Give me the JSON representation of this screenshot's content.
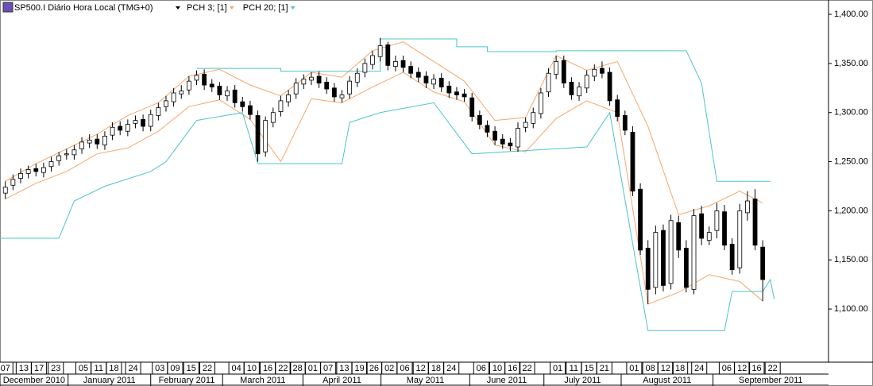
{
  "chart_data": {
    "type": "candlestick",
    "title": "SP500.I Diário Hora Local (TMG+0)",
    "up_color": "#ffffff",
    "down_color": "#000000",
    "open": [
      1218,
      1226,
      1233,
      1238,
      1243,
      1239,
      1245,
      1251,
      1257,
      1257,
      1263,
      1269,
      1273,
      1267,
      1277,
      1286,
      1281,
      1289,
      1293,
      1286,
      1297,
      1306,
      1311,
      1319,
      1323,
      1333,
      1339,
      1329,
      1327,
      1317,
      1323,
      1311,
      1307,
      1297,
      1260,
      1290,
      1301,
      1311,
      1319,
      1329,
      1333,
      1337,
      1331,
      1325,
      1315,
      1319,
      1331,
      1341,
      1349,
      1357,
      1369,
      1347,
      1353,
      1347,
      1341,
      1337,
      1329,
      1335,
      1327,
      1321,
      1319,
      1315,
      1297,
      1287,
      1281,
      1273,
      1269,
      1265,
      1285,
      1289,
      1299,
      1321,
      1339,
      1353,
      1331,
      1317,
      1325,
      1337,
      1345,
      1341,
      1313,
      1297,
      1280,
      1222,
      1162,
      1122,
      1180,
      1126,
      1188,
      1162,
      1120,
      1197,
      1170,
      1180,
      1199,
      1166,
      1142,
      1198,
      1212,
      1163
    ],
    "high": [
      1230,
      1237,
      1243,
      1246,
      1248,
      1249,
      1255,
      1260,
      1263,
      1267,
      1275,
      1278,
      1278,
      1281,
      1290,
      1291,
      1293,
      1297,
      1298,
      1303,
      1310,
      1317,
      1325,
      1328,
      1337,
      1343,
      1344,
      1334,
      1331,
      1327,
      1328,
      1316,
      1312,
      1302,
      1296,
      1305,
      1317,
      1323,
      1335,
      1339,
      1341,
      1342,
      1336,
      1330,
      1323,
      1337,
      1345,
      1355,
      1363,
      1376,
      1372,
      1358,
      1358,
      1352,
      1346,
      1342,
      1339,
      1340,
      1332,
      1326,
      1324,
      1320,
      1302,
      1292,
      1286,
      1278,
      1274,
      1290,
      1295,
      1305,
      1325,
      1345,
      1358,
      1358,
      1336,
      1331,
      1343,
      1349,
      1352,
      1346,
      1318,
      1302,
      1286,
      1228,
      1170,
      1185,
      1186,
      1196,
      1195,
      1170,
      1202,
      1205,
      1184,
      1208,
      1206,
      1172,
      1207,
      1220,
      1222,
      1170
    ],
    "low": [
      1212,
      1221,
      1228,
      1233,
      1235,
      1234,
      1240,
      1246,
      1252,
      1252,
      1258,
      1264,
      1263,
      1262,
      1272,
      1277,
      1276,
      1284,
      1281,
      1281,
      1292,
      1301,
      1306,
      1314,
      1318,
      1328,
      1323,
      1321,
      1313,
      1312,
      1305,
      1301,
      1293,
      1250,
      1255,
      1285,
      1296,
      1306,
      1314,
      1324,
      1328,
      1325,
      1319,
      1311,
      1310,
      1314,
      1326,
      1336,
      1344,
      1352,
      1343,
      1342,
      1341,
      1335,
      1331,
      1325,
      1324,
      1321,
      1315,
      1313,
      1311,
      1291,
      1283,
      1275,
      1267,
      1263,
      1261,
      1260,
      1280,
      1284,
      1294,
      1316,
      1334,
      1325,
      1313,
      1312,
      1320,
      1332,
      1335,
      1307,
      1291,
      1277,
      1215,
      1155,
      1105,
      1115,
      1118,
      1120,
      1152,
      1117,
      1115,
      1165,
      1165,
      1172,
      1160,
      1135,
      1136,
      1190,
      1160,
      1108
    ],
    "close": [
      1224,
      1232,
      1238,
      1242,
      1240,
      1244,
      1250,
      1256,
      1258,
      1262,
      1270,
      1272,
      1268,
      1276,
      1285,
      1282,
      1288,
      1292,
      1286,
      1298,
      1305,
      1312,
      1320,
      1322,
      1332,
      1338,
      1328,
      1326,
      1318,
      1322,
      1310,
      1306,
      1298,
      1258,
      1292,
      1300,
      1312,
      1318,
      1330,
      1334,
      1336,
      1330,
      1324,
      1316,
      1318,
      1332,
      1340,
      1350,
      1358,
      1368,
      1348,
      1352,
      1346,
      1340,
      1336,
      1330,
      1334,
      1326,
      1320,
      1318,
      1316,
      1296,
      1288,
      1280,
      1272,
      1268,
      1266,
      1284,
      1290,
      1300,
      1320,
      1340,
      1352,
      1330,
      1318,
      1326,
      1338,
      1344,
      1340,
      1312,
      1296,
      1282,
      1220,
      1160,
      1120,
      1178,
      1124,
      1190,
      1160,
      1122,
      1195,
      1172,
      1178,
      1200,
      1165,
      1140,
      1200,
      1210,
      1165,
      1130
    ],
    "indicators": [
      {
        "name": "PCH 3; [1]",
        "color": "#f7a66b",
        "upper": {
          "x": [
            0,
            4,
            8,
            12,
            16,
            20,
            24,
            28,
            32,
            36,
            40,
            44,
            48,
            52,
            56,
            60,
            64,
            68,
            72,
            76,
            80,
            84,
            88,
            92,
            96,
            99
          ],
          "y": [
            1230,
            1248,
            1263,
            1278,
            1297,
            1310,
            1337,
            1344,
            1328,
            1317,
            1341,
            1336,
            1363,
            1372,
            1352,
            1332,
            1292,
            1295,
            1358,
            1343,
            1352,
            1286,
            1196,
            1205,
            1220,
            1208
          ]
        },
        "lower": {
          "x": [
            0,
            4,
            8,
            12,
            16,
            20,
            24,
            28,
            32,
            36,
            40,
            44,
            48,
            52,
            56,
            60,
            64,
            68,
            72,
            76,
            80,
            84,
            88,
            92,
            96,
            99
          ],
          "y": [
            1212,
            1228,
            1240,
            1258,
            1264,
            1281,
            1306,
            1313,
            1293,
            1250,
            1314,
            1310,
            1326,
            1341,
            1321,
            1311,
            1267,
            1260,
            1294,
            1312,
            1300,
            1105,
            1117,
            1135,
            1128,
            1108
          ]
        }
      },
      {
        "name": "PCH 20; [1]",
        "color": "#4cc4c8",
        "upper": {
          "x": [
            25,
            36,
            36,
            49,
            49,
            59,
            59,
            63,
            63,
            72,
            72,
            89,
            91,
            93,
            100
          ],
          "y": [
            1345,
            1345,
            1342,
            1342,
            1375,
            1375,
            1367,
            1367,
            1362,
            1362,
            1363,
            1363,
            1330,
            1230,
            1230
          ]
        },
        "lower": {
          "x": [
            -0.7,
            7,
            9,
            13,
            19,
            21,
            25,
            31,
            33,
            44,
            45,
            49,
            56,
            61,
            76,
            79,
            84,
            94,
            95,
            99,
            100,
            100.5
          ],
          "y": [
            1172,
            1172,
            1210,
            1225,
            1240,
            1250,
            1292,
            1300,
            1248,
            1248,
            1290,
            1300,
            1310,
            1258,
            1265,
            1300,
            1078,
            1078,
            1118,
            1118,
            1130,
            1110
          ]
        }
      }
    ],
    "xlim": [
      -0.7,
      107.6
    ],
    "ylim": [
      1046.7,
      1414.6
    ],
    "yticks": [
      {
        "value": 1100,
        "label": "1,100.00"
      },
      {
        "value": 1150,
        "label": "1,150.00"
      },
      {
        "value": 1200,
        "label": "1,200.00"
      },
      {
        "value": 1250,
        "label": "1,250.00"
      },
      {
        "value": 1300,
        "label": "1,300.00"
      },
      {
        "value": 1350,
        "label": "1,350.00"
      },
      {
        "value": 1400,
        "label": "1,400.00"
      }
    ],
    "xticks": [
      {
        "value": 0,
        "label": "07"
      },
      {
        "value": 2.4,
        "label": "13"
      },
      {
        "value": 4.4,
        "label": "17"
      },
      {
        "value": 6.6,
        "label": "23"
      },
      {
        "value": 10.2,
        "label": "05"
      },
      {
        "value": 12.2,
        "label": "11"
      },
      {
        "value": 14.2,
        "label": "18"
      },
      {
        "value": 16.7,
        "label": "24"
      },
      {
        "value": 20.2,
        "label": "03"
      },
      {
        "value": 22.2,
        "label": "09"
      },
      {
        "value": 24.3,
        "label": "15"
      },
      {
        "value": 26.4,
        "label": "22"
      },
      {
        "value": 30.2,
        "label": "04"
      },
      {
        "value": 32.2,
        "label": "10"
      },
      {
        "value": 34.3,
        "label": "16"
      },
      {
        "value": 36.3,
        "label": "22"
      },
      {
        "value": 38.2,
        "label": "28"
      },
      {
        "value": 40.2,
        "label": "01"
      },
      {
        "value": 42.2,
        "label": "07"
      },
      {
        "value": 44.3,
        "label": "13"
      },
      {
        "value": 46.3,
        "label": "19"
      },
      {
        "value": 48.2,
        "label": "26"
      },
      {
        "value": 50.2,
        "label": "02"
      },
      {
        "value": 52.2,
        "label": "06"
      },
      {
        "value": 54.3,
        "label": "12"
      },
      {
        "value": 56.3,
        "label": "18"
      },
      {
        "value": 58.3,
        "label": "24"
      },
      {
        "value": 62.2,
        "label": "06"
      },
      {
        "value": 64.3,
        "label": "10"
      },
      {
        "value": 66.3,
        "label": "16"
      },
      {
        "value": 68.2,
        "label": "22"
      },
      {
        "value": 72.2,
        "label": "01"
      },
      {
        "value": 74.3,
        "label": "11"
      },
      {
        "value": 76.3,
        "label": "15"
      },
      {
        "value": 78.3,
        "label": "21"
      },
      {
        "value": 82.2,
        "label": "01"
      },
      {
        "value": 84.3,
        "label": "08"
      },
      {
        "value": 86.3,
        "label": "12"
      },
      {
        "value": 88.2,
        "label": "18"
      },
      {
        "value": 90.7,
        "label": "24"
      },
      {
        "value": 94.3,
        "label": "06"
      },
      {
        "value": 96.3,
        "label": "12"
      },
      {
        "value": 98.2,
        "label": "16"
      },
      {
        "value": 100.3,
        "label": "22"
      }
    ],
    "month_ticks": [
      {
        "value": -0.7,
        "label": "December 2010"
      },
      {
        "value": 8.2,
        "label": "January 2011"
      },
      {
        "value": 19,
        "label": "February 2011"
      },
      {
        "value": 28.4,
        "label": "March 2011"
      },
      {
        "value": 38.9,
        "label": "April 2011"
      },
      {
        "value": 49.1,
        "label": "May 2011"
      },
      {
        "value": 60.7,
        "label": "June 2011"
      },
      {
        "value": 70.4,
        "label": "July 2011"
      },
      {
        "value": 80.5,
        "label": "August 2011"
      },
      {
        "value": 92.5,
        "label": "September 2011"
      }
    ]
  }
}
